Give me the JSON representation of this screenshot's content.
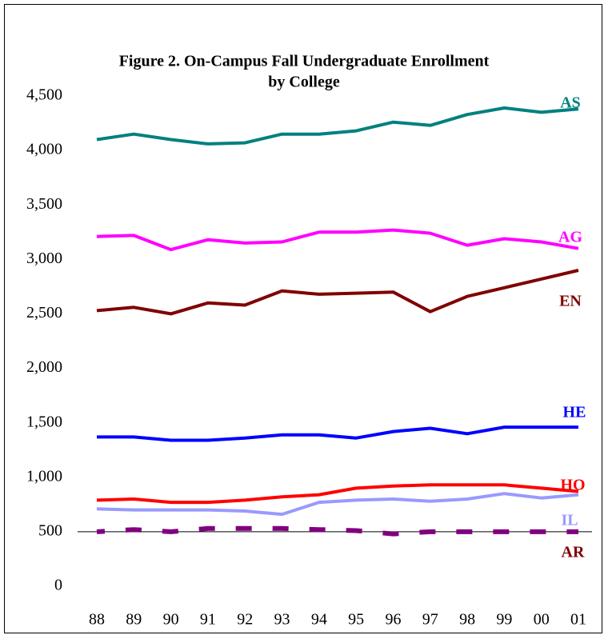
{
  "chart_data": {
    "type": "line",
    "title": [
      "Figure 2. On-Campus Fall Undergraduate Enrollment",
      "by College"
    ],
    "categories": [
      "88",
      "89",
      "90",
      "91",
      "92",
      "93",
      "94",
      "95",
      "96",
      "97",
      "98",
      "99",
      "00",
      "01"
    ],
    "ylim": [
      0,
      4500
    ],
    "yticks": [
      0,
      500,
      {
        "value": 1000,
        "label": "1,000"
      },
      {
        "value": 1500,
        "label": "1,500"
      },
      {
        "value": 2000,
        "label": "2,000"
      },
      {
        "value": 2500,
        "label": "2,500"
      },
      {
        "value": 3000,
        "label": "3,000"
      },
      {
        "value": 3500,
        "label": "3,500"
      },
      {
        "value": 4000,
        "label": "4,000"
      },
      {
        "value": 4500,
        "label": "4,500"
      }
    ],
    "x_axis_crosses": 500,
    "series": [
      {
        "name": "AS",
        "color": "#008080",
        "values": [
          4100,
          4150,
          4100,
          4060,
          4070,
          4150,
          4150,
          4180,
          4260,
          4230,
          4330,
          4390,
          4350,
          4380
        ]
      },
      {
        "name": "AG",
        "color": "#ff00ff",
        "values": [
          3210,
          3220,
          3090,
          3180,
          3150,
          3160,
          3250,
          3250,
          3270,
          3240,
          3130,
          3190,
          3160,
          3100
        ]
      },
      {
        "name": "EN",
        "color": "#800000",
        "values": [
          2530,
          2560,
          2500,
          2600,
          2580,
          2710,
          2680,
          2690,
          2700,
          2520,
          2660,
          2740,
          2820,
          2900
        ]
      },
      {
        "name": "HE",
        "color": "#0000ff",
        "values": [
          1370,
          1370,
          1340,
          1340,
          1360,
          1390,
          1390,
          1360,
          1420,
          1450,
          1400,
          1460,
          1460,
          1460
        ]
      },
      {
        "name": "HO",
        "color": "#ff0000",
        "values": [
          790,
          800,
          770,
          770,
          790,
          820,
          840,
          900,
          920,
          930,
          930,
          930,
          900,
          870
        ]
      },
      {
        "name": "IL",
        "color": "#9999ff",
        "values": [
          710,
          700,
          700,
          700,
          690,
          660,
          770,
          790,
          800,
          780,
          800,
          850,
          810,
          840
        ]
      },
      {
        "name": "AR",
        "color": "#800080",
        "label_color": "#800000",
        "dashed": true,
        "values": [
          500,
          520,
          500,
          530,
          530,
          530,
          520,
          510,
          480,
          500,
          500,
          500,
          500,
          500
        ]
      }
    ]
  }
}
